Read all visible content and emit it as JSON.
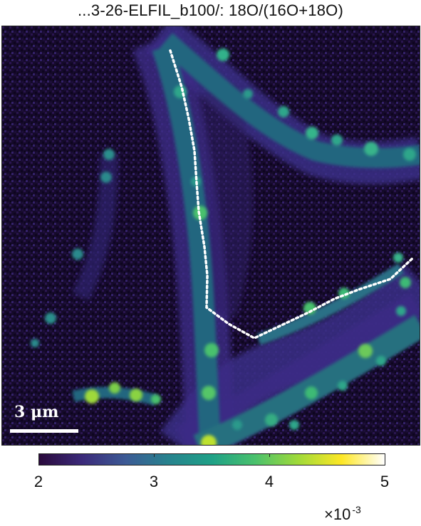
{
  "title": "...3-26-ELFIL_b100/: 18O/(16O+18O)",
  "scalebar": {
    "label": "3 μm"
  },
  "colorbar": {
    "colormap": "viridis",
    "colors": [
      "#2a0a3c",
      "#3b2a7a",
      "#3c5a95",
      "#27838e",
      "#1fa187",
      "#4ac16d",
      "#a0da39",
      "#fde725",
      "#ffffff"
    ],
    "range": [
      2,
      5
    ],
    "ticks": [
      "2",
      "3",
      "4",
      "5"
    ],
    "exponent_base": "×10",
    "exponent_power": "-3"
  },
  "colors": {
    "background": "#160a2c",
    "filament": "#3c2f8a",
    "filament_core": "#1f8f8c",
    "hotspot": "#9fd93a",
    "profile_line": "#ffffff"
  }
}
